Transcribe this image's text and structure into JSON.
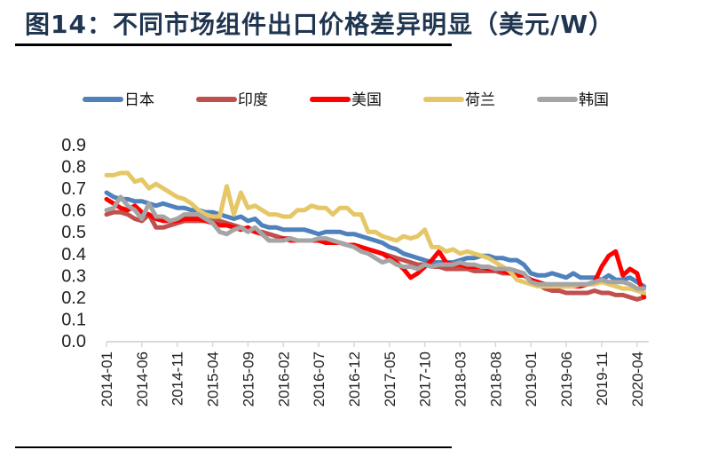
{
  "title": "图14：不同市场组件出口价格差异明显（美元/W）",
  "chart_data": {
    "type": "line",
    "title": "图14：不同市场组件出口价格差异明显（美元/W）",
    "xlabel": "",
    "ylabel": "",
    "ylim": [
      0,
      0.9
    ],
    "yticks": [
      "0.0",
      "0.1",
      "0.2",
      "0.3",
      "0.4",
      "0.5",
      "0.6",
      "0.7",
      "0.8",
      "0.9"
    ],
    "grid": false,
    "legend": "top",
    "xtick_labels": [
      "2014-01",
      "2014-06",
      "2014-11",
      "2015-04",
      "2015-09",
      "2016-02",
      "2016-07",
      "2016-12",
      "2017-05",
      "2017-10",
      "2018-03",
      "2018-08",
      "2019-01",
      "2019-06",
      "2019-11",
      "2020-04"
    ],
    "categories": [
      "2014-01",
      "2014-02",
      "2014-03",
      "2014-04",
      "2014-05",
      "2014-06",
      "2014-07",
      "2014-08",
      "2014-09",
      "2014-10",
      "2014-11",
      "2014-12",
      "2015-01",
      "2015-02",
      "2015-03",
      "2015-04",
      "2015-05",
      "2015-06",
      "2015-07",
      "2015-08",
      "2015-09",
      "2015-10",
      "2015-11",
      "2015-12",
      "2016-01",
      "2016-02",
      "2016-03",
      "2016-04",
      "2016-05",
      "2016-06",
      "2016-07",
      "2016-08",
      "2016-09",
      "2016-10",
      "2016-11",
      "2016-12",
      "2017-01",
      "2017-02",
      "2017-03",
      "2017-04",
      "2017-05",
      "2017-06",
      "2017-07",
      "2017-08",
      "2017-09",
      "2017-10",
      "2017-11",
      "2017-12",
      "2018-01",
      "2018-02",
      "2018-03",
      "2018-04",
      "2018-05",
      "2018-06",
      "2018-07",
      "2018-08",
      "2018-09",
      "2018-10",
      "2018-11",
      "2018-12",
      "2019-01",
      "2019-02",
      "2019-03",
      "2019-04",
      "2019-05",
      "2019-06",
      "2019-07",
      "2019-08",
      "2019-09",
      "2019-10",
      "2019-11",
      "2019-12",
      "2020-01",
      "2020-02",
      "2020-03",
      "2020-04",
      "2020-05"
    ],
    "series": [
      {
        "name": "日本",
        "color": "#4F81BD",
        "values": [
          0.68,
          0.66,
          0.65,
          0.65,
          0.64,
          0.64,
          0.63,
          0.62,
          0.63,
          0.62,
          0.61,
          0.61,
          0.6,
          0.6,
          0.59,
          0.59,
          0.58,
          0.57,
          0.56,
          0.57,
          0.55,
          0.56,
          0.53,
          0.52,
          0.52,
          0.51,
          0.51,
          0.51,
          0.51,
          0.5,
          0.49,
          0.5,
          0.5,
          0.5,
          0.49,
          0.49,
          0.48,
          0.47,
          0.46,
          0.45,
          0.43,
          0.42,
          0.4,
          0.39,
          0.38,
          0.37,
          0.36,
          0.36,
          0.36,
          0.36,
          0.37,
          0.38,
          0.38,
          0.39,
          0.39,
          0.38,
          0.38,
          0.37,
          0.37,
          0.35,
          0.31,
          0.3,
          0.3,
          0.31,
          0.3,
          0.29,
          0.31,
          0.29,
          0.29,
          0.29,
          0.28,
          0.3,
          0.28,
          0.28,
          0.29,
          0.27,
          0.25
        ]
      },
      {
        "name": "印度",
        "color": "#C0504D",
        "values": [
          0.58,
          0.59,
          0.59,
          0.58,
          0.56,
          0.55,
          0.58,
          0.52,
          0.52,
          0.53,
          0.54,
          0.55,
          0.55,
          0.55,
          0.55,
          0.56,
          0.55,
          0.54,
          0.53,
          0.52,
          0.51,
          0.5,
          0.5,
          0.49,
          0.48,
          0.47,
          0.47,
          0.46,
          0.46,
          0.46,
          0.46,
          0.45,
          0.45,
          0.45,
          0.44,
          0.44,
          0.43,
          0.42,
          0.41,
          0.4,
          0.39,
          0.38,
          0.37,
          0.36,
          0.35,
          0.35,
          0.34,
          0.34,
          0.33,
          0.33,
          0.33,
          0.33,
          0.32,
          0.32,
          0.32,
          0.32,
          0.31,
          0.31,
          0.3,
          0.3,
          0.28,
          0.26,
          0.24,
          0.23,
          0.23,
          0.22,
          0.22,
          0.22,
          0.22,
          0.23,
          0.22,
          0.22,
          0.21,
          0.21,
          0.2,
          0.19,
          0.2
        ]
      },
      {
        "name": "美国",
        "color": "#FF0000",
        "values": [
          0.65,
          0.63,
          0.61,
          0.6,
          0.62,
          0.59,
          0.58,
          0.56,
          0.55,
          0.55,
          0.55,
          0.56,
          0.56,
          0.56,
          0.55,
          0.54,
          0.53,
          0.53,
          0.52,
          0.51,
          0.52,
          0.5,
          0.49,
          0.46,
          0.46,
          0.47,
          0.46,
          0.46,
          0.46,
          0.46,
          0.46,
          0.45,
          0.45,
          0.45,
          0.44,
          0.44,
          0.43,
          0.42,
          0.41,
          0.4,
          0.38,
          0.36,
          0.33,
          0.29,
          0.31,
          0.34,
          0.37,
          0.41,
          0.36,
          0.35,
          0.35,
          0.34,
          0.34,
          0.34,
          0.33,
          0.33,
          0.32,
          0.31,
          0.3,
          0.3,
          0.28,
          0.27,
          0.26,
          0.25,
          0.25,
          0.25,
          0.25,
          0.25,
          0.26,
          0.27,
          0.34,
          0.39,
          0.41,
          0.3,
          0.33,
          0.31,
          0.2
        ]
      },
      {
        "name": "荷兰",
        "color": "#E6C767",
        "values": [
          0.76,
          0.76,
          0.77,
          0.77,
          0.73,
          0.74,
          0.7,
          0.72,
          0.7,
          0.68,
          0.66,
          0.65,
          0.63,
          0.6,
          0.58,
          0.57,
          0.57,
          0.71,
          0.58,
          0.68,
          0.61,
          0.62,
          0.6,
          0.58,
          0.58,
          0.57,
          0.57,
          0.6,
          0.6,
          0.62,
          0.61,
          0.61,
          0.58,
          0.61,
          0.61,
          0.58,
          0.58,
          0.5,
          0.5,
          0.48,
          0.47,
          0.46,
          0.48,
          0.47,
          0.48,
          0.51,
          0.43,
          0.43,
          0.41,
          0.42,
          0.4,
          0.41,
          0.4,
          0.39,
          0.38,
          0.36,
          0.34,
          0.32,
          0.28,
          0.27,
          0.26,
          0.25,
          0.25,
          0.25,
          0.25,
          0.25,
          0.25,
          0.26,
          0.26,
          0.26,
          0.27,
          0.26,
          0.25,
          0.24,
          0.24,
          0.23,
          0.22
        ]
      },
      {
        "name": "韩国",
        "color": "#A5A5A5",
        "values": [
          0.6,
          0.61,
          0.66,
          0.62,
          0.6,
          0.56,
          0.63,
          0.57,
          0.57,
          0.55,
          0.56,
          0.58,
          0.58,
          0.58,
          0.56,
          0.54,
          0.5,
          0.49,
          0.51,
          0.52,
          0.5,
          0.52,
          0.49,
          0.46,
          0.46,
          0.46,
          0.47,
          0.46,
          0.46,
          0.46,
          0.47,
          0.47,
          0.46,
          0.45,
          0.44,
          0.43,
          0.41,
          0.4,
          0.38,
          0.36,
          0.37,
          0.35,
          0.34,
          0.34,
          0.33,
          0.35,
          0.34,
          0.35,
          0.35,
          0.35,
          0.36,
          0.35,
          0.35,
          0.34,
          0.34,
          0.33,
          0.33,
          0.33,
          0.32,
          0.31,
          0.27,
          0.26,
          0.26,
          0.26,
          0.26,
          0.26,
          0.26,
          0.26,
          0.26,
          0.27,
          0.28,
          0.27,
          0.27,
          0.27,
          0.26,
          0.24,
          0.24
        ]
      }
    ]
  }
}
